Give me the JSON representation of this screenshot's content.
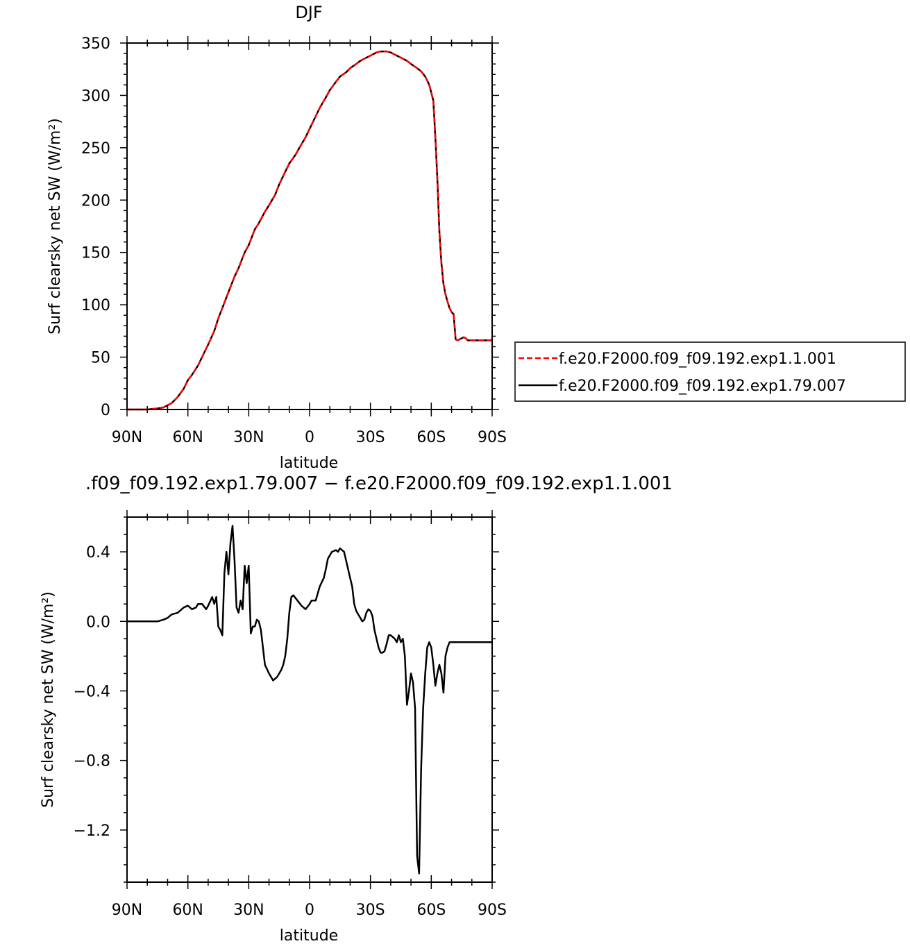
{
  "chart_data": [
    {
      "type": "line",
      "title": "DJF",
      "xlabel": "latitude",
      "ylabel": "Surf clearsky net SW (W/m²)",
      "xlim": [
        -90,
        90
      ],
      "ylim": [
        0,
        350
      ],
      "x_tick_labels": [
        "90N",
        "60N",
        "30N",
        "0",
        "30S",
        "60S",
        "90S"
      ],
      "y_tick_labels": [
        "0",
        "50",
        "100",
        "150",
        "200",
        "250",
        "300",
        "350"
      ],
      "legend_position": "right",
      "series": [
        {
          "name": "f.e20.F2000.f09_f09.192.exp1.1.001",
          "color": "#ff0000",
          "dash": "dashed",
          "x": [
            -90,
            -85,
            -80,
            -75,
            -72,
            -70,
            -68,
            -65,
            -62,
            -60,
            -58,
            -55,
            -52,
            -50,
            -47,
            -45,
            -42,
            -40,
            -37,
            -35,
            -32,
            -30,
            -27,
            -25,
            -22,
            -20,
            -17,
            -15,
            -12,
            -10,
            -7,
            -5,
            -2,
            0,
            3,
            5,
            8,
            10,
            13,
            15,
            18,
            20,
            23,
            25,
            28,
            30,
            33,
            35,
            38,
            40,
            42,
            45,
            48,
            50,
            53,
            55,
            57,
            59,
            61,
            62,
            63,
            64,
            65,
            66,
            67,
            68,
            69,
            70,
            71,
            72,
            73,
            74,
            75,
            76,
            77,
            78,
            79,
            80,
            82,
            84,
            86,
            88,
            90
          ],
          "values": [
            0,
            0,
            0,
            1,
            2,
            4,
            6,
            12,
            20,
            28,
            33,
            42,
            54,
            62,
            75,
            87,
            102,
            112,
            127,
            135,
            150,
            157,
            172,
            178,
            189,
            195,
            205,
            215,
            227,
            235,
            243,
            250,
            260,
            268,
            280,
            288,
            298,
            305,
            313,
            318,
            322,
            326,
            330,
            333,
            336,
            338,
            341,
            342,
            342,
            341,
            339,
            336,
            333,
            330,
            326,
            323,
            318,
            310,
            295,
            260,
            220,
            170,
            140,
            120,
            110,
            103,
            97,
            93,
            91,
            67,
            66,
            67,
            68,
            69,
            68,
            66,
            66,
            66,
            66,
            66,
            66,
            66,
            66
          ]
        },
        {
          "name": "f.e20.F2000.f09_f09.192.exp1.79.007",
          "color": "#000000",
          "dash": "solid",
          "x": [
            -90,
            -85,
            -80,
            -75,
            -72,
            -70,
            -68,
            -65,
            -62,
            -60,
            -58,
            -55,
            -52,
            -50,
            -47,
            -45,
            -42,
            -40,
            -37,
            -35,
            -32,
            -30,
            -27,
            -25,
            -22,
            -20,
            -17,
            -15,
            -12,
            -10,
            -7,
            -5,
            -2,
            0,
            3,
            5,
            8,
            10,
            13,
            15,
            18,
            20,
            23,
            25,
            28,
            30,
            33,
            35,
            38,
            40,
            42,
            45,
            48,
            50,
            53,
            55,
            57,
            59,
            61,
            62,
            63,
            64,
            65,
            66,
            67,
            68,
            69,
            70,
            71,
            72,
            73,
            74,
            75,
            76,
            77,
            78,
            79,
            80,
            82,
            84,
            86,
            88,
            90
          ],
          "values": [
            0,
            0,
            0,
            1,
            2,
            4,
            6,
            12,
            20,
            28,
            33,
            42,
            54,
            62,
            75,
            87,
            102,
            112,
            127,
            135,
            150,
            157,
            172,
            178,
            189,
            195,
            205,
            215,
            227,
            235,
            243,
            250,
            260,
            268,
            280,
            288,
            298,
            305,
            313,
            318,
            322,
            326,
            330,
            333,
            336,
            338,
            341,
            342,
            342,
            341,
            339,
            336,
            333,
            330,
            326,
            323,
            318,
            310,
            295,
            260,
            220,
            170,
            140,
            120,
            110,
            103,
            97,
            93,
            91,
            67,
            66,
            67,
            68,
            69,
            68,
            66,
            66,
            66,
            66,
            66,
            66,
            66,
            66
          ]
        }
      ]
    },
    {
      "type": "line",
      "title": ".f09_f09.192.exp1.79.007 − f.e20.F2000.f09_f09.192.exp1.1.001",
      "xlabel": "latitude",
      "ylabel": "Surf clearsky net SW (W/m²)",
      "xlim": [
        -90,
        90
      ],
      "ylim": [
        -1.5,
        0.6
      ],
      "x_tick_labels": [
        "90N",
        "60N",
        "30N",
        "0",
        "30S",
        "60S",
        "90S"
      ],
      "y_tick_labels": [
        "0.4",
        "0.0",
        "−0.4",
        "−0.8",
        "−1.2"
      ],
      "series": [
        {
          "color": "#000000",
          "x": [
            -90,
            -80,
            -75,
            -72,
            -70,
            -68,
            -65,
            -62,
            -60,
            -58,
            -56,
            -55,
            -53,
            -51,
            -50,
            -48,
            -47,
            -46,
            -45,
            -44,
            -43,
            -42,
            -41,
            -40,
            -39,
            -38,
            -37,
            -36,
            -35,
            -34,
            -33,
            -32,
            -31,
            -30,
            -29,
            -28,
            -27,
            -26,
            -25,
            -24,
            -22,
            -20,
            -18,
            -17,
            -16,
            -15,
            -14,
            -13,
            -12,
            -11,
            -10,
            -9,
            -8,
            -6,
            -4,
            -2,
            0,
            1,
            3,
            5,
            7,
            8,
            9,
            11,
            13,
            14,
            15,
            17,
            18,
            19,
            20,
            21,
            22,
            23,
            24,
            25,
            26,
            27,
            28,
            29,
            30,
            31,
            32,
            33,
            34,
            35,
            36,
            37,
            38,
            39,
            40,
            41,
            42,
            43,
            44,
            45,
            46,
            47,
            48,
            49,
            50,
            51,
            52,
            53,
            54,
            55,
            56,
            57,
            58,
            59,
            60,
            61,
            62,
            63,
            64,
            65,
            66,
            67,
            68,
            69,
            70,
            71,
            72,
            73,
            74,
            75,
            76,
            77,
            78,
            79,
            80,
            81,
            82,
            83,
            84,
            85,
            86,
            87,
            88,
            89,
            90
          ],
          "values": [
            0,
            0,
            0,
            0.01,
            0.02,
            0.04,
            0.05,
            0.08,
            0.09,
            0.07,
            0.08,
            0.1,
            0.1,
            0.07,
            0.09,
            0.14,
            0.1,
            0.14,
            -0.03,
            -0.05,
            -0.08,
            0.28,
            0.4,
            0.27,
            0.45,
            0.55,
            0.35,
            0.08,
            0.05,
            0.12,
            0.07,
            0.32,
            0.22,
            0.32,
            -0.07,
            -0.03,
            -0.03,
            0.01,
            0.0,
            -0.05,
            -0.25,
            -0.3,
            -0.34,
            -0.33,
            -0.32,
            -0.3,
            -0.28,
            -0.25,
            -0.2,
            -0.1,
            0.05,
            0.14,
            0.15,
            0.12,
            0.09,
            0.07,
            0.1,
            0.12,
            0.12,
            0.2,
            0.25,
            0.3,
            0.36,
            0.4,
            0.41,
            0.4,
            0.42,
            0.4,
            0.35,
            0.3,
            0.25,
            0.2,
            0.1,
            0.06,
            0.04,
            0.02,
            0.0,
            0.01,
            0.05,
            0.07,
            0.06,
            0.03,
            -0.05,
            -0.1,
            -0.15,
            -0.18,
            -0.18,
            -0.17,
            -0.13,
            -0.08,
            -0.08,
            -0.09,
            -0.1,
            -0.12,
            -0.08,
            -0.12,
            -0.1,
            -0.2,
            -0.48,
            -0.4,
            -0.3,
            -0.35,
            -0.5,
            -1.35,
            -1.45,
            -0.85,
            -0.5,
            -0.3,
            -0.15,
            -0.12,
            -0.15,
            -0.25,
            -0.37,
            -0.3,
            -0.25,
            -0.3,
            -0.41,
            -0.2,
            -0.15,
            -0.12,
            -0.12,
            -0.12,
            -0.12,
            -0.12,
            -0.12,
            -0.12,
            -0.12,
            -0.12,
            -0.12,
            -0.12,
            -0.12,
            -0.12,
            -0.12,
            -0.12,
            -0.12,
            -0.12,
            -0.12,
            -0.12,
            -0.12,
            -0.12,
            -0.12
          ]
        }
      ]
    }
  ]
}
